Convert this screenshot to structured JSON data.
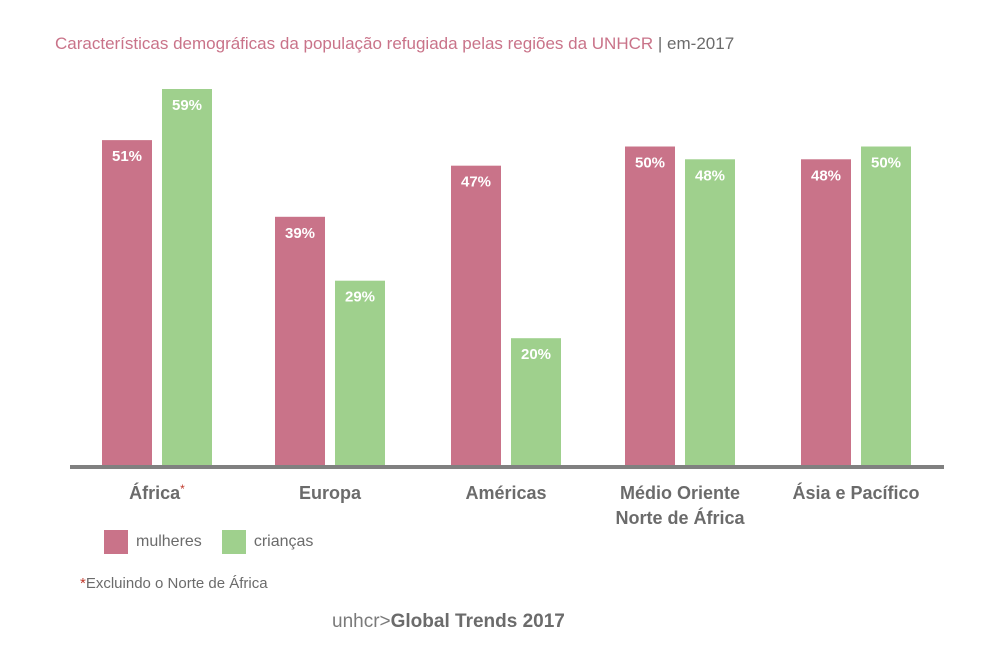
{
  "title": {
    "main": "Características demográficas da população refugiada pelas regiões da UNHCR",
    "separator": "|",
    "suffix": "em-2017"
  },
  "legend": {
    "women": "mulheres",
    "children": "crianças"
  },
  "note": {
    "marker": "*",
    "text": "Excluindo o Norte  de África"
  },
  "source": {
    "prefix": "unhcr>",
    "bold": "Global Trends 2017"
  },
  "colors": {
    "women": "#c97389",
    "children": "#9fd08d",
    "axis": "#808080",
    "category_text": "#6b6b6b",
    "star": "#c0392b"
  },
  "chart_data": {
    "type": "bar",
    "categories": [
      "África",
      "Europa",
      "Américas",
      "Médio Oriente Norte de África",
      "Ásia e Pacífico"
    ],
    "category_lines": [
      [
        "África"
      ],
      [
        "Europa"
      ],
      [
        "Américas"
      ],
      [
        "Médio Oriente",
        "Norte de África"
      ],
      [
        "Ásia e Pacífico"
      ]
    ],
    "category_markers": [
      "*",
      "",
      "",
      "",
      ""
    ],
    "series": [
      {
        "name": "mulheres",
        "values": [
          51,
          39,
          47,
          50,
          48
        ],
        "labels": [
          "51%",
          "39%",
          "47%",
          "50%",
          "48%"
        ]
      },
      {
        "name": "crianças",
        "values": [
          59,
          29,
          20,
          48,
          50
        ],
        "labels": [
          "59%",
          "29%",
          "20%",
          "48%",
          "50%"
        ]
      }
    ],
    "ylim": [
      0,
      59
    ],
    "grid": false,
    "legend_position": "bottom-left"
  }
}
